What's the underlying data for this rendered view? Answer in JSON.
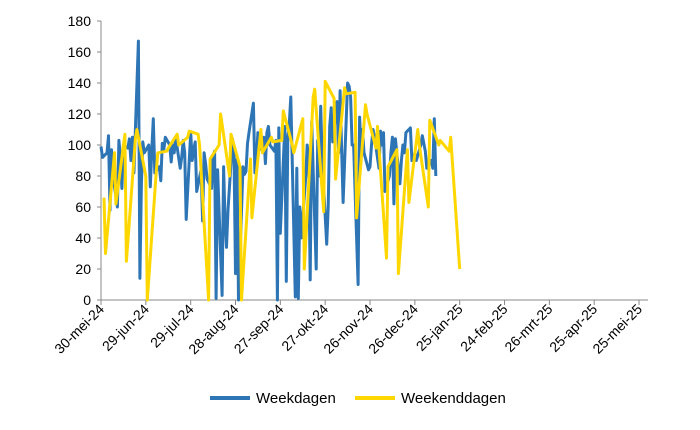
{
  "chart_data": {
    "type": "line",
    "xlabel": "",
    "ylabel": "",
    "ylim": [
      0,
      180
    ],
    "yticks": [
      0,
      20,
      40,
      60,
      80,
      100,
      120,
      140,
      160,
      180
    ],
    "xlim": [
      "2024-05-30",
      "2025-05-31"
    ],
    "xticks": [
      "30-mei-24",
      "29-jun-24",
      "29-jul-24",
      "28-aug-24",
      "27-sep-24",
      "27-okt-24",
      "26-nov-24",
      "26-dec-24",
      "25-jan-25",
      "24-feb-25",
      "26-mrt-25",
      "25-apr-25",
      "25-mei-25"
    ],
    "grid": false,
    "legend": "bottom",
    "colors": {
      "weekdagen": "#2e75b6",
      "weekenddagen": "#ffd700"
    },
    "series": [
      {
        "name": "Weekdagen",
        "color": "#2e75b6",
        "points": [
          [
            "2024-05-30",
            99
          ],
          [
            "2024-05-31",
            92
          ],
          [
            "2024-06-03",
            95
          ],
          [
            "2024-06-04",
            106
          ],
          [
            "2024-06-05",
            58
          ],
          [
            "2024-06-06",
            97
          ],
          [
            "2024-06-07",
            80
          ],
          [
            "2024-06-10",
            60
          ],
          [
            "2024-06-11",
            103
          ],
          [
            "2024-06-12",
            92
          ],
          [
            "2024-06-13",
            72
          ],
          [
            "2024-06-14",
            100
          ],
          [
            "2024-06-17",
            98
          ],
          [
            "2024-06-18",
            104
          ],
          [
            "2024-06-19",
            90
          ],
          [
            "2024-06-20",
            105
          ],
          [
            "2024-06-21",
            82
          ],
          [
            "2024-06-24",
            167
          ],
          [
            "2024-06-25",
            14
          ],
          [
            "2024-06-26",
            75
          ],
          [
            "2024-06-27",
            102
          ],
          [
            "2024-06-28",
            95
          ],
          [
            "2024-07-01",
            100
          ],
          [
            "2024-07-02",
            73
          ],
          [
            "2024-07-03",
            97
          ],
          [
            "2024-07-04",
            117
          ],
          [
            "2024-07-05",
            82
          ],
          [
            "2024-07-08",
            86
          ],
          [
            "2024-07-09",
            77
          ],
          [
            "2024-07-10",
            101
          ],
          [
            "2024-07-11",
            97
          ],
          [
            "2024-07-12",
            105
          ],
          [
            "2024-07-15",
            100
          ],
          [
            "2024-07-16",
            89
          ],
          [
            "2024-07-17",
            100
          ],
          [
            "2024-07-18",
            95
          ],
          [
            "2024-07-19",
            105
          ],
          [
            "2024-07-22",
            85
          ],
          [
            "2024-07-23",
            92
          ],
          [
            "2024-07-24",
            103
          ],
          [
            "2024-07-25",
            95
          ],
          [
            "2024-07-26",
            52
          ],
          [
            "2024-07-29",
            108
          ],
          [
            "2024-07-30",
            90
          ],
          [
            "2024-07-31",
            97
          ],
          [
            "2024-08-01",
            102
          ],
          [
            "2024-08-02",
            70
          ],
          [
            "2024-08-05",
            84
          ],
          [
            "2024-08-06",
            51
          ],
          [
            "2024-08-07",
            95
          ],
          [
            "2024-08-08",
            88
          ],
          [
            "2024-08-09",
            78
          ],
          [
            "2024-08-12",
            72
          ],
          [
            "2024-08-13",
            93
          ],
          [
            "2024-08-14",
            96
          ],
          [
            "2024-08-15",
            1
          ],
          [
            "2024-08-16",
            84
          ],
          [
            "2024-08-19",
            3
          ],
          [
            "2024-08-20",
            86
          ],
          [
            "2024-08-21",
            52
          ],
          [
            "2024-08-22",
            34
          ],
          [
            "2024-08-23",
            58
          ],
          [
            "2024-08-26",
            104
          ],
          [
            "2024-08-27",
            94
          ],
          [
            "2024-08-28",
            17
          ],
          [
            "2024-08-29",
            91
          ],
          [
            "2024-08-30",
            0
          ],
          [
            "2024-09-02",
            86
          ],
          [
            "2024-09-03",
            81
          ],
          [
            "2024-09-04",
            83
          ],
          [
            "2024-09-05",
            101
          ],
          [
            "2024-09-06",
            108
          ],
          [
            "2024-09-09",
            127
          ],
          [
            "2024-09-10",
            82
          ],
          [
            "2024-09-11",
            90
          ],
          [
            "2024-09-12",
            108
          ],
          [
            "2024-09-13",
            97
          ],
          [
            "2024-09-16",
            105
          ],
          [
            "2024-09-17",
            88
          ],
          [
            "2024-09-18",
            108
          ],
          [
            "2024-09-19",
            112
          ],
          [
            "2024-09-20",
            100
          ],
          [
            "2024-09-23",
            96
          ],
          [
            "2024-09-24",
            103
          ],
          [
            "2024-09-25",
            0
          ],
          [
            "2024-09-26",
            111
          ],
          [
            "2024-09-27",
            43
          ],
          [
            "2024-09-30",
            112
          ],
          [
            "2024-10-01",
            12
          ],
          [
            "2024-10-02",
            105
          ],
          [
            "2024-10-03",
            114
          ],
          [
            "2024-10-04",
            131
          ],
          [
            "2024-10-07",
            2
          ],
          [
            "2024-10-08",
            85
          ],
          [
            "2024-10-09",
            1
          ],
          [
            "2024-10-10",
            60
          ],
          [
            "2024-10-11",
            40
          ],
          [
            "2024-10-14",
            80
          ],
          [
            "2024-10-15",
            100
          ],
          [
            "2024-10-16",
            90
          ],
          [
            "2024-10-17",
            13
          ],
          [
            "2024-10-18",
            115
          ],
          [
            "2024-10-21",
            20
          ],
          [
            "2024-10-22",
            103
          ],
          [
            "2024-10-23",
            80
          ],
          [
            "2024-10-24",
            125
          ],
          [
            "2024-10-25",
            90
          ],
          [
            "2024-10-28",
            36
          ],
          [
            "2024-10-29",
            60
          ],
          [
            "2024-10-30",
            112
          ],
          [
            "2024-10-31",
            124
          ],
          [
            "2024-11-01",
            102
          ],
          [
            "2024-11-04",
            128
          ],
          [
            "2024-11-05",
            95
          ],
          [
            "2024-11-06",
            135
          ],
          [
            "2024-11-07",
            98
          ],
          [
            "2024-11-08",
            63
          ],
          [
            "2024-11-11",
            140
          ],
          [
            "2024-11-12",
            138
          ],
          [
            "2024-11-13",
            131
          ],
          [
            "2024-11-14",
            100
          ],
          [
            "2024-11-15",
            100
          ],
          [
            "2024-11-18",
            10
          ],
          [
            "2024-11-19",
            118
          ],
          [
            "2024-11-20",
            97
          ],
          [
            "2024-11-21",
            110
          ],
          [
            "2024-11-22",
            95
          ],
          [
            "2024-11-25",
            84
          ],
          [
            "2024-11-26",
            86
          ],
          [
            "2024-11-27",
            100
          ],
          [
            "2024-11-28",
            110
          ],
          [
            "2024-11-29",
            105
          ],
          [
            "2024-12-02",
            85
          ],
          [
            "2024-12-03",
            109
          ],
          [
            "2024-12-04",
            100
          ],
          [
            "2024-12-05",
            108
          ],
          [
            "2024-12-06",
            70
          ],
          [
            "2024-12-09",
            80
          ],
          [
            "2024-12-10",
            95
          ],
          [
            "2024-12-11",
            105
          ],
          [
            "2024-12-12",
            62
          ],
          [
            "2024-12-13",
            104
          ],
          [
            "2024-12-16",
            75
          ],
          [
            "2024-12-17",
            90
          ],
          [
            "2024-12-18",
            100
          ],
          [
            "2024-12-19",
            95
          ],
          [
            "2024-12-20",
            108
          ],
          [
            "2024-12-23",
            111
          ],
          [
            "2024-12-24",
            90
          ],
          [
            "2024-12-25",
            91
          ],
          [
            "2024-12-26",
            95
          ],
          [
            "2024-12-27",
            90
          ],
          [
            "2024-12-30",
            100
          ],
          [
            "2024-12-31",
            106
          ],
          [
            "2025-01-02",
            96
          ],
          [
            "2025-01-03",
            85
          ],
          [
            "2025-01-06",
            90
          ],
          [
            "2025-01-07",
            85
          ],
          [
            "2025-01-08",
            117
          ],
          [
            "2025-01-09",
            80
          ]
        ]
      },
      {
        "name": "Weekenddagen",
        "color": "#ffd700",
        "points": [
          [
            "2024-06-01",
            66
          ],
          [
            "2024-06-02",
            30
          ],
          [
            "2024-06-08",
            95
          ],
          [
            "2024-06-09",
            62
          ],
          [
            "2024-06-15",
            107
          ],
          [
            "2024-06-16",
            25
          ],
          [
            "2024-06-22",
            104
          ],
          [
            "2024-06-23",
            110
          ],
          [
            "2024-06-29",
            80
          ],
          [
            "2024-06-30",
            0
          ],
          [
            "2024-07-06",
            83
          ],
          [
            "2024-07-07",
            95
          ],
          [
            "2024-07-13",
            96
          ],
          [
            "2024-07-14",
            98
          ],
          [
            "2024-07-20",
            107
          ],
          [
            "2024-07-21",
            100
          ],
          [
            "2024-07-27",
            105
          ],
          [
            "2024-07-28",
            109
          ],
          [
            "2024-08-03",
            107
          ],
          [
            "2024-08-04",
            100
          ],
          [
            "2024-08-10",
            0
          ],
          [
            "2024-08-11",
            91
          ],
          [
            "2024-08-17",
            100
          ],
          [
            "2024-08-18",
            120
          ],
          [
            "2024-08-24",
            80
          ],
          [
            "2024-08-25",
            107
          ],
          [
            "2024-08-31",
            86
          ],
          [
            "2024-09-01",
            0
          ],
          [
            "2024-09-07",
            91
          ],
          [
            "2024-09-08",
            53
          ],
          [
            "2024-09-14",
            110
          ],
          [
            "2024-09-15",
            95
          ],
          [
            "2024-09-21",
            105
          ],
          [
            "2024-09-22",
            102
          ],
          [
            "2024-09-28",
            103
          ],
          [
            "2024-09-29",
            122
          ],
          [
            "2024-10-05",
            100
          ],
          [
            "2024-10-06",
            95
          ],
          [
            "2024-10-12",
            117
          ],
          [
            "2024-10-13",
            20
          ],
          [
            "2024-10-19",
            131
          ],
          [
            "2024-10-20",
            136
          ],
          [
            "2024-10-26",
            57
          ],
          [
            "2024-10-27",
            141
          ],
          [
            "2024-11-02",
            130
          ],
          [
            "2024-11-03",
            78
          ],
          [
            "2024-11-09",
            137
          ],
          [
            "2024-11-10",
            133
          ],
          [
            "2024-11-16",
            134
          ],
          [
            "2024-11-17",
            53
          ],
          [
            "2024-11-23",
            126
          ],
          [
            "2024-11-24",
            120
          ],
          [
            "2024-11-30",
            98
          ],
          [
            "2024-12-01",
            112
          ],
          [
            "2024-12-07",
            27
          ],
          [
            "2024-12-08",
            86
          ],
          [
            "2024-12-14",
            97
          ],
          [
            "2024-12-15",
            17
          ],
          [
            "2024-12-21",
            97
          ],
          [
            "2024-12-22",
            63
          ],
          [
            "2024-12-28",
            110
          ],
          [
            "2024-12-29",
            100
          ],
          [
            "2025-01-04",
            60
          ],
          [
            "2025-01-05",
            116
          ],
          [
            "2025-01-11",
            100
          ],
          [
            "2025-01-12",
            103
          ],
          [
            "2025-01-18",
            96
          ],
          [
            "2025-01-19",
            105
          ],
          [
            "2025-01-25",
            20
          ]
        ]
      }
    ]
  }
}
